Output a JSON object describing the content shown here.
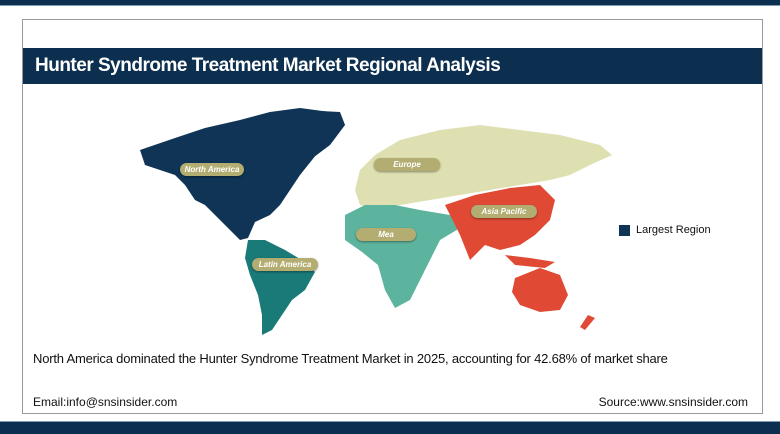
{
  "header": {
    "title": "Hunter Syndrome Treatment Market Regional Analysis"
  },
  "map": {
    "regions": [
      {
        "label": "North America",
        "color": "#0f3456",
        "largest": true
      },
      {
        "label": "Latin America",
        "color": "#1a7a78"
      },
      {
        "label": "Europe",
        "color": "#dfe0b2"
      },
      {
        "label": "Mea",
        "color": "#5db49e"
      },
      {
        "label": "Asia Pacific",
        "color": "#e04a35"
      }
    ],
    "legend": {
      "label": "Largest Region",
      "color": "#0f3456"
    }
  },
  "summary": "North America dominated the Hunter Syndrome Treatment Market in 2025, accounting for 42.68% of market share",
  "footer": {
    "email": "Email:info@snsinsider.com",
    "source": "Source:www.snsinsider.com"
  }
}
